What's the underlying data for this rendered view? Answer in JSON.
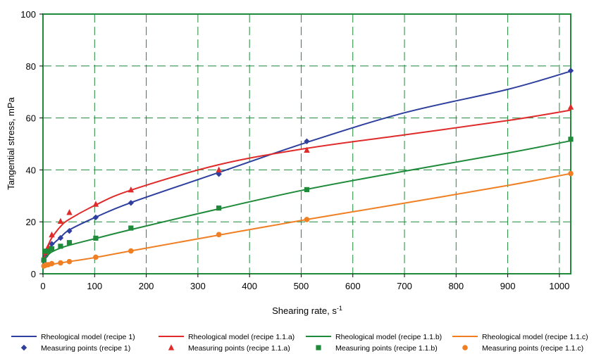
{
  "chart_data": {
    "type": "scatter",
    "xlabel": "Shearing rate, s",
    "xlabel_sup": "-1",
    "ylabel": "Tangential stress, mPa",
    "xlim": [
      0,
      1022
    ],
    "ylim": [
      0,
      100
    ],
    "x_ticks": [
      0,
      100,
      200,
      300,
      400,
      500,
      600,
      700,
      800,
      900,
      1000
    ],
    "y_ticks": [
      0,
      20,
      40,
      60,
      80,
      100
    ],
    "grid": true,
    "legend_position": "bottom",
    "series": [
      {
        "name": "Rheological model (recipe 1)",
        "marker_name": "Measuring points (recipe 1)",
        "color": "#2e3f9e",
        "marker": "diamond",
        "model_points": [
          [
            1.7,
            5.0
          ],
          [
            5.1,
            7.3
          ],
          [
            10.2,
            9.3
          ],
          [
            17.0,
            11.0
          ],
          [
            34.0,
            14.0
          ],
          [
            51.1,
            16.9
          ],
          [
            102.2,
            21.8
          ],
          [
            170.3,
            27.4
          ],
          [
            340.6,
            39.0
          ],
          [
            510.9,
            50.6
          ],
          [
            700,
            62.0
          ],
          [
            900,
            71.0
          ],
          [
            1022,
            78.0
          ]
        ],
        "measured": [
          [
            1.7,
            5.2
          ],
          [
            5.1,
            6.8
          ],
          [
            10.2,
            8.8
          ],
          [
            17.0,
            11.5
          ],
          [
            34.0,
            13.8
          ],
          [
            51.1,
            16.5
          ],
          [
            102.2,
            21.7
          ],
          [
            170.3,
            27.3
          ],
          [
            340.6,
            38.4
          ],
          [
            510.9,
            51.0
          ],
          [
            1022,
            78.2
          ]
        ]
      },
      {
        "name": "Rheological model (recipe 1.1.a)",
        "marker_name": "Measuring points (recipe 1.1.a)",
        "color": "#e02b2b",
        "marker": "triangle",
        "model_points": [
          [
            1.7,
            5.5
          ],
          [
            5.1,
            8.3
          ],
          [
            10.2,
            11.0
          ],
          [
            17.0,
            13.8
          ],
          [
            34.0,
            18.2
          ],
          [
            51.1,
            21.0
          ],
          [
            102.2,
            26.5
          ],
          [
            170.3,
            32.2
          ],
          [
            340.6,
            42.0
          ],
          [
            510.9,
            48.3
          ],
          [
            700,
            53.5
          ],
          [
            900,
            59.0
          ],
          [
            1022,
            63.0
          ]
        ],
        "measured": [
          [
            1.7,
            5.3
          ],
          [
            5.1,
            8.3
          ],
          [
            10.2,
            10.5
          ],
          [
            17.0,
            15.0
          ],
          [
            34.0,
            20.2
          ],
          [
            51.1,
            23.6
          ],
          [
            102.2,
            26.8
          ],
          [
            170.3,
            32.3
          ],
          [
            340.6,
            40.0
          ],
          [
            510.9,
            47.6
          ],
          [
            1022,
            64.2
          ]
        ]
      },
      {
        "name": "Rheological model (recipe 1.1.b)",
        "marker_name": "Measuring points (recipe 1.1.b)",
        "color": "#1e8a3a",
        "marker": "square",
        "model_points": [
          [
            1.7,
            5.4
          ],
          [
            5.1,
            6.4
          ],
          [
            10.2,
            7.3
          ],
          [
            17.0,
            8.4
          ],
          [
            34.0,
            9.9
          ],
          [
            51.1,
            11.0
          ],
          [
            102.2,
            13.6
          ],
          [
            170.3,
            17.0
          ],
          [
            340.6,
            25.0
          ],
          [
            510.9,
            32.5
          ],
          [
            700,
            39.5
          ],
          [
            900,
            46.5
          ],
          [
            1022,
            51.2
          ]
        ],
        "measured": [
          [
            1.7,
            5.3
          ],
          [
            5.1,
            8.7
          ],
          [
            10.2,
            8.7
          ],
          [
            17.0,
            9.6
          ],
          [
            34.0,
            10.6
          ],
          [
            51.1,
            12.0
          ],
          [
            102.2,
            13.7
          ],
          [
            170.3,
            17.6
          ],
          [
            340.6,
            25.3
          ],
          [
            510.9,
            32.4
          ],
          [
            1022,
            51.8
          ]
        ]
      },
      {
        "name": "Rheological model (recipe 1.1.c)",
        "marker_name": "Measuring points (recipe 1.1.c)",
        "color": "#f07f23",
        "marker": "circle",
        "model_points": [
          [
            1.7,
            2.9
          ],
          [
            5.1,
            3.1
          ],
          [
            10.2,
            3.3
          ],
          [
            17.0,
            3.6
          ],
          [
            34.0,
            4.2
          ],
          [
            51.1,
            4.7
          ],
          [
            102.2,
            6.3
          ],
          [
            170.3,
            8.8
          ],
          [
            340.6,
            14.9
          ],
          [
            510.9,
            20.9
          ],
          [
            700,
            27.2
          ],
          [
            900,
            34.0
          ],
          [
            1022,
            38.6
          ]
        ],
        "measured": [
          [
            1.7,
            3.0
          ],
          [
            5.1,
            3.3
          ],
          [
            10.2,
            3.5
          ],
          [
            17.0,
            3.9
          ],
          [
            34.0,
            4.2
          ],
          [
            51.1,
            4.7
          ],
          [
            102.2,
            6.4
          ],
          [
            170.3,
            8.8
          ],
          [
            340.6,
            15.1
          ],
          [
            510.9,
            20.9
          ],
          [
            1022,
            38.6
          ]
        ]
      }
    ]
  }
}
